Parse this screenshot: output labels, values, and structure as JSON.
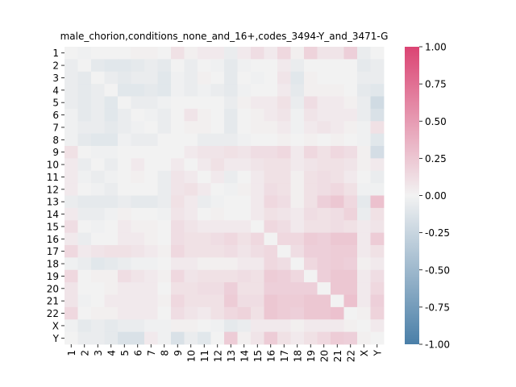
{
  "chart_data": {
    "type": "heatmap",
    "title": "male_chorion,conditions_none_and_16+,codes_3494-Y_and_3471-G",
    "xlabel": "",
    "ylabel": "",
    "categories": [
      "1",
      "2",
      "3",
      "4",
      "5",
      "6",
      "7",
      "8",
      "9",
      "10",
      "11",
      "12",
      "13",
      "14",
      "15",
      "16",
      "17",
      "18",
      "19",
      "20",
      "21",
      "22",
      "X",
      "Y"
    ],
    "colorbar": {
      "min": -1.0,
      "max": 1.0,
      "ticks": [
        "-1.00",
        "-0.75",
        "-0.50",
        "-0.25",
        "0.00",
        "0.25",
        "0.50",
        "0.75",
        "1.00"
      ],
      "low_color": "#4a7fa8",
      "mid_color": "#f2f2f2",
      "high_color": "#db4473"
    },
    "values": [
      [
        0.0,
        -0.02,
        0.0,
        0.0,
        0.0,
        0.02,
        0.02,
        0.0,
        0.1,
        0.02,
        0.05,
        0.05,
        -0.05,
        0.05,
        0.12,
        0.05,
        0.15,
        0.02,
        0.18,
        0.08,
        0.08,
        0.2,
        -0.05,
        0.0
      ],
      [
        -0.05,
        0.0,
        -0.08,
        -0.1,
        -0.1,
        -0.08,
        -0.05,
        -0.08,
        0.0,
        -0.05,
        0.0,
        -0.02,
        -0.08,
        -0.02,
        0.0,
        0.0,
        0.05,
        -0.05,
        0.0,
        0.0,
        0.0,
        0.0,
        -0.08,
        -0.05
      ],
      [
        -0.05,
        -0.08,
        0.0,
        -0.05,
        -0.08,
        -0.05,
        -0.05,
        -0.1,
        -0.02,
        -0.05,
        0.02,
        0.0,
        -0.08,
        0.0,
        -0.02,
        0.0,
        0.08,
        -0.1,
        0.02,
        0.0,
        0.0,
        0.0,
        -0.05,
        -0.05
      ],
      [
        -0.05,
        -0.08,
        -0.05,
        0.0,
        -0.1,
        -0.1,
        -0.08,
        -0.1,
        -0.02,
        -0.05,
        -0.02,
        -0.05,
        -0.08,
        -0.02,
        0.0,
        0.0,
        0.05,
        -0.08,
        0.02,
        0.02,
        0.02,
        0.0,
        -0.08,
        -0.1
      ],
      [
        -0.05,
        -0.08,
        -0.05,
        -0.1,
        0.0,
        -0.05,
        -0.05,
        -0.02,
        0.0,
        0.0,
        0.0,
        0.0,
        -0.05,
        0.02,
        0.05,
        0.05,
        0.1,
        -0.05,
        0.12,
        0.05,
        0.05,
        0.02,
        -0.05,
        -0.2
      ],
      [
        -0.02,
        -0.08,
        -0.05,
        -0.1,
        -0.05,
        0.0,
        -0.02,
        -0.05,
        0.0,
        0.08,
        0.02,
        0.0,
        -0.08,
        0.0,
        0.02,
        0.05,
        0.08,
        -0.02,
        0.08,
        0.05,
        0.05,
        0.05,
        -0.05,
        -0.15
      ],
      [
        -0.02,
        -0.05,
        -0.05,
        -0.08,
        -0.05,
        -0.02,
        0.0,
        -0.05,
        0.0,
        0.02,
        0.02,
        0.0,
        -0.08,
        0.0,
        0.02,
        0.02,
        0.05,
        -0.02,
        0.05,
        0.08,
        0.05,
        0.02,
        -0.02,
        0.1
      ],
      [
        -0.02,
        -0.08,
        -0.1,
        -0.1,
        -0.02,
        -0.05,
        -0.05,
        0.0,
        0.0,
        0.0,
        -0.05,
        -0.05,
        -0.05,
        -0.02,
        0.0,
        0.0,
        0.02,
        0.0,
        0.02,
        0.0,
        0.02,
        0.0,
        -0.02,
        -0.1
      ],
      [
        0.1,
        0.0,
        -0.02,
        -0.02,
        0.0,
        0.0,
        0.0,
        0.0,
        0.0,
        0.05,
        0.08,
        0.08,
        0.1,
        0.08,
        0.12,
        0.12,
        0.15,
        0.05,
        0.15,
        0.1,
        0.15,
        0.12,
        0.02,
        -0.18
      ],
      [
        0.05,
        -0.05,
        0.0,
        -0.05,
        0.0,
        0.05,
        0.0,
        0.0,
        0.05,
        0.0,
        0.05,
        0.1,
        0.05,
        0.05,
        0.08,
        0.1,
        0.1,
        0.05,
        0.08,
        0.1,
        0.1,
        0.08,
        0.02,
        0.05
      ],
      [
        0.05,
        -0.02,
        -0.05,
        -0.02,
        0.0,
        0.02,
        0.0,
        -0.05,
        0.08,
        0.05,
        0.0,
        0.05,
        -0.05,
        0.0,
        0.05,
        0.1,
        0.1,
        0.02,
        0.1,
        0.12,
        0.1,
        0.05,
        0.0,
        -0.05
      ],
      [
        0.05,
        0.0,
        -0.02,
        -0.05,
        0.0,
        0.0,
        0.0,
        -0.05,
        0.08,
        0.1,
        0.05,
        0.0,
        -0.02,
        0.02,
        0.05,
        0.12,
        0.1,
        0.02,
        0.1,
        0.12,
        0.15,
        0.1,
        -0.02,
        -0.02
      ],
      [
        -0.05,
        -0.08,
        -0.08,
        -0.08,
        -0.05,
        -0.08,
        -0.08,
        -0.05,
        0.1,
        0.05,
        -0.05,
        -0.02,
        0.0,
        0.0,
        0.05,
        0.15,
        0.12,
        0.02,
        0.1,
        0.2,
        0.25,
        0.15,
        -0.08,
        0.28
      ],
      [
        0.05,
        -0.05,
        -0.05,
        -0.02,
        0.02,
        0.0,
        0.0,
        -0.02,
        0.08,
        0.05,
        0.0,
        0.02,
        0.0,
        0.0,
        0.05,
        0.1,
        0.08,
        0.05,
        0.12,
        0.1,
        0.12,
        0.18,
        -0.05,
        0.1
      ],
      [
        0.12,
        0.0,
        -0.02,
        0.0,
        0.05,
        0.02,
        0.02,
        0.0,
        0.12,
        0.08,
        0.05,
        0.05,
        0.05,
        0.05,
        0.0,
        0.15,
        0.12,
        0.05,
        0.1,
        0.1,
        0.12,
        0.1,
        0.05,
        0.08
      ],
      [
        0.05,
        -0.05,
        0.0,
        0.0,
        0.05,
        0.05,
        0.02,
        0.0,
        0.12,
        0.1,
        0.1,
        0.12,
        0.15,
        0.1,
        0.15,
        0.0,
        0.15,
        0.15,
        0.22,
        0.2,
        0.25,
        0.25,
        0.05,
        0.22
      ],
      [
        0.15,
        0.05,
        0.08,
        0.1,
        0.1,
        0.08,
        0.05,
        0.02,
        0.15,
        0.1,
        0.1,
        0.1,
        0.12,
        0.08,
        0.12,
        0.15,
        0.0,
        0.12,
        0.2,
        0.2,
        0.22,
        0.22,
        0.05,
        0.1
      ],
      [
        -0.02,
        -0.05,
        -0.1,
        -0.08,
        -0.05,
        -0.02,
        -0.02,
        0.0,
        0.05,
        0.05,
        0.02,
        0.02,
        0.02,
        0.05,
        0.05,
        0.15,
        0.12,
        0.0,
        0.15,
        0.2,
        0.22,
        0.2,
        0.02,
        0.05
      ],
      [
        0.15,
        0.0,
        0.02,
        0.02,
        0.12,
        0.08,
        0.05,
        0.02,
        0.15,
        0.08,
        0.1,
        0.1,
        0.1,
        0.12,
        0.1,
        0.22,
        0.2,
        0.15,
        0.0,
        0.2,
        0.25,
        0.25,
        0.05,
        0.12
      ],
      [
        0.08,
        0.0,
        0.0,
        0.02,
        0.05,
        0.05,
        0.05,
        0.0,
        0.1,
        0.1,
        0.12,
        0.12,
        0.2,
        0.1,
        0.1,
        0.2,
        0.2,
        0.2,
        0.2,
        0.0,
        0.25,
        0.25,
        0.05,
        0.15
      ],
      [
        0.08,
        -0.02,
        0.0,
        0.05,
        0.05,
        0.05,
        0.05,
        0.02,
        0.15,
        0.1,
        0.1,
        0.1,
        0.22,
        0.12,
        0.12,
        0.25,
        0.22,
        0.22,
        0.25,
        0.25,
        0.0,
        0.28,
        0.05,
        0.2
      ],
      [
        0.15,
        0.0,
        0.02,
        0.02,
        0.05,
        0.05,
        0.05,
        0.0,
        0.12,
        0.08,
        0.05,
        0.1,
        0.15,
        0.18,
        0.1,
        0.25,
        0.22,
        0.2,
        0.25,
        0.25,
        0.28,
        0.0,
        0.02,
        0.18
      ],
      [
        -0.02,
        -0.08,
        -0.05,
        -0.08,
        -0.05,
        -0.05,
        -0.02,
        -0.02,
        0.02,
        0.02,
        0.0,
        -0.02,
        -0.08,
        -0.05,
        0.05,
        0.05,
        0.05,
        0.02,
        0.05,
        0.05,
        0.05,
        0.02,
        0.0,
        0.05
      ],
      [
        0.0,
        -0.05,
        -0.05,
        -0.08,
        -0.15,
        -0.15,
        0.05,
        -0.02,
        -0.15,
        -0.05,
        -0.1,
        0.0,
        0.22,
        0.02,
        0.08,
        0.22,
        0.1,
        0.05,
        0.1,
        0.15,
        0.22,
        0.2,
        0.02,
        0.0
      ]
    ]
  }
}
